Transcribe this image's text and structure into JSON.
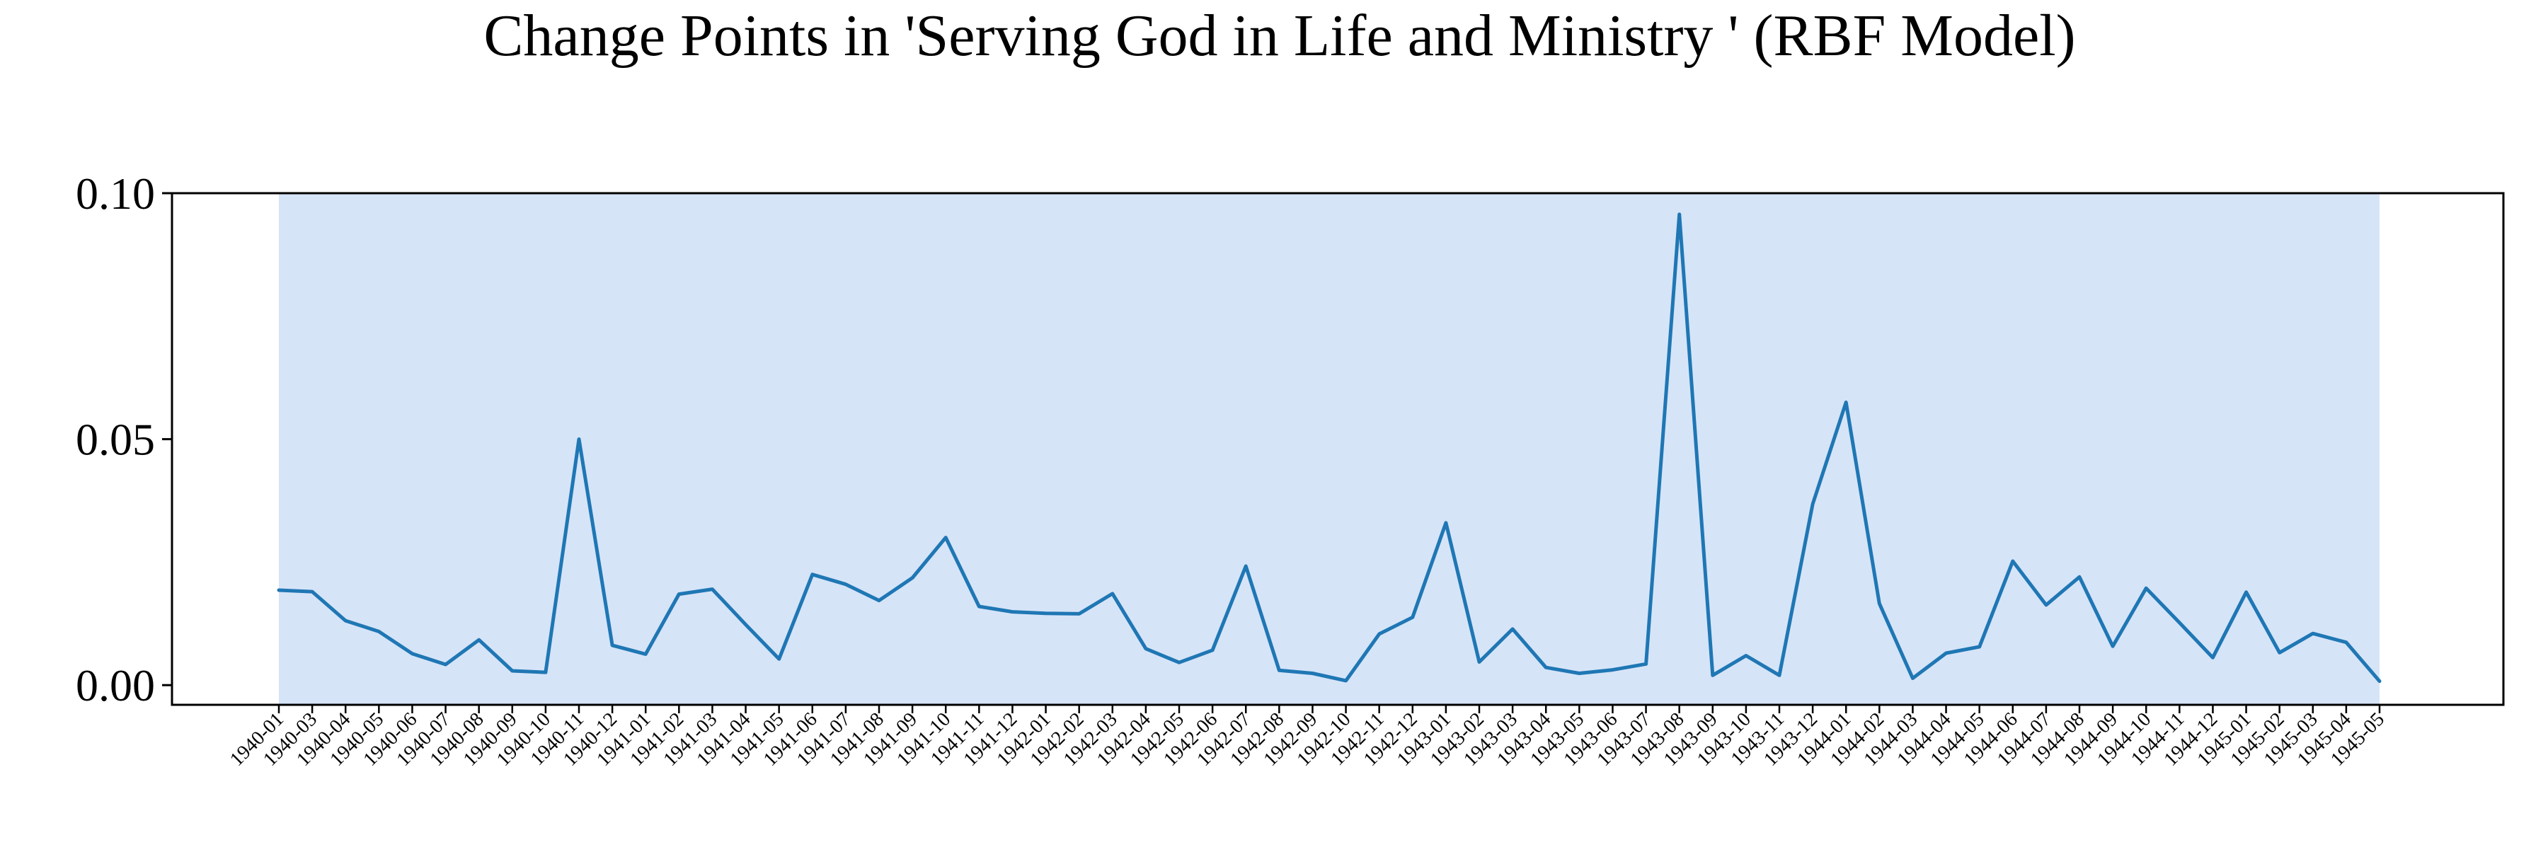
{
  "chart_data": {
    "type": "line",
    "title": "Change Points in 'Serving God in Life and Ministry ' (RBF Model)",
    "xlabel": "",
    "ylabel": "",
    "ylim": [
      -0.004,
      0.1
    ],
    "y_ticks": [
      "0.00",
      "0.05",
      "0.10"
    ],
    "grid": false,
    "legend": "none",
    "highlight_span": {
      "from": "1940-01",
      "to": "1945-05",
      "color": "#d6e4f8"
    },
    "series": [
      {
        "color": "#1f77b4",
        "x": [
          "1940-01",
          "1940-03",
          "1940-04",
          "1940-05",
          "1940-06",
          "1940-07",
          "1940-08",
          "1940-09",
          "1940-10",
          "1940-11",
          "1940-12",
          "1941-01",
          "1941-02",
          "1941-03",
          "1941-04",
          "1941-05",
          "1941-06",
          "1941-07",
          "1941-08",
          "1941-09",
          "1941-10",
          "1941-11",
          "1941-12",
          "1942-01",
          "1942-02",
          "1942-03",
          "1942-04",
          "1942-05",
          "1942-06",
          "1942-07",
          "1942-08",
          "1942-09",
          "1942-10",
          "1942-11",
          "1942-12",
          "1943-01",
          "1943-02",
          "1943-03",
          "1943-04",
          "1943-05",
          "1943-06",
          "1943-07",
          "1943-08",
          "1943-09",
          "1943-10",
          "1943-11",
          "1943-12",
          "1944-01",
          "1944-02",
          "1944-03",
          "1944-04",
          "1944-05",
          "1944-06",
          "1944-07",
          "1944-08",
          "1944-09",
          "1944-10",
          "1944-11",
          "1944-12",
          "1945-01",
          "1945-02",
          "1945-03",
          "1945-04",
          "1945-05"
        ],
        "values": [
          0.0193,
          0.019,
          0.0131,
          0.0109,
          0.0064,
          0.0042,
          0.0092,
          0.0029,
          0.0026,
          0.05,
          0.0081,
          0.0063,
          0.0185,
          0.0195,
          0.0123,
          0.0053,
          0.0225,
          0.0205,
          0.0172,
          0.0218,
          0.03,
          0.016,
          0.0149,
          0.0146,
          0.0145,
          0.0186,
          0.0074,
          0.0046,
          0.0071,
          0.0242,
          0.003,
          0.0024,
          0.0009,
          0.0104,
          0.0138,
          0.033,
          0.0047,
          0.0114,
          0.0036,
          0.0024,
          0.0031,
          0.0043,
          0.0957,
          0.002,
          0.006,
          0.002,
          0.0368,
          0.0575,
          0.0166,
          0.0014,
          0.0065,
          0.0078,
          0.0252,
          0.0163,
          0.022,
          0.0079,
          0.0197,
          0.0127,
          0.0056,
          0.0189,
          0.0066,
          0.0105,
          0.0087,
          0.0008
        ]
      }
    ]
  }
}
